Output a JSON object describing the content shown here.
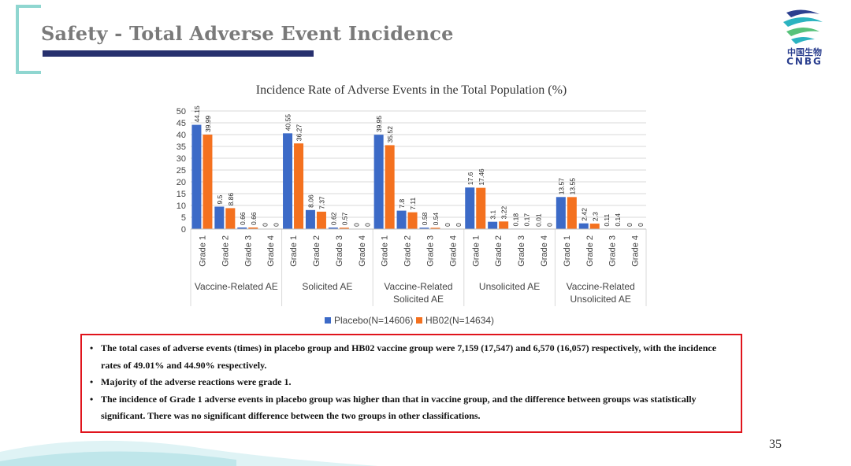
{
  "slide": {
    "title": "Safety - Total Adverse Event Incidence",
    "page_number": "35",
    "logo_cn": "中国生物",
    "logo_en": "CNBG"
  },
  "colors": {
    "placebo": "#3c6ac7",
    "hb02": "#f4711f",
    "title_bar": "#27306e",
    "bracket": "#8fd6d0",
    "box": "#e0141c"
  },
  "chart_data": {
    "type": "bar",
    "title": "Incidence Rate of Adverse Events in the Total Population (%)",
    "ylim": [
      0,
      50
    ],
    "yticks": [
      0,
      5,
      10,
      15,
      20,
      25,
      30,
      35,
      40,
      45,
      50
    ],
    "grid": true,
    "legend_position": "bottom",
    "groups": [
      {
        "label": [
          "Vaccine-Related AE"
        ],
        "categories": [
          "Grade 1",
          "Grade 2",
          "Grade 3",
          "Grade 4"
        ],
        "placebo": [
          44.15,
          9.5,
          0.66,
          0
        ],
        "hb02": [
          39.99,
          8.86,
          0.66,
          0
        ]
      },
      {
        "label": [
          "Solicited AE"
        ],
        "categories": [
          "Grade 1",
          "Grade 2",
          "Grade 3",
          "Grade 4"
        ],
        "placebo": [
          40.55,
          8.06,
          0.62,
          0
        ],
        "hb02": [
          36.27,
          7.37,
          0.57,
          0
        ]
      },
      {
        "label": [
          "Vaccine-Related",
          "Solicited AE"
        ],
        "categories": [
          "Grade 1",
          "Grade 2",
          "Grade 3",
          "Grade 4"
        ],
        "placebo": [
          39.95,
          7.8,
          0.58,
          0
        ],
        "hb02": [
          35.52,
          7.11,
          0.54,
          0
        ]
      },
      {
        "label": [
          "Unsolicited AE"
        ],
        "categories": [
          "Grade 1",
          "Grade 2",
          "Grade 3",
          "Grade 4"
        ],
        "placebo": [
          17.6,
          3.1,
          0.18,
          0.01
        ],
        "hb02": [
          17.46,
          3.22,
          0.17,
          0
        ]
      },
      {
        "label": [
          "Vaccine-Related",
          "Unsolicited AE"
        ],
        "categories": [
          "Grade 1",
          "Grade 2",
          "Grade 3",
          "Grade 4"
        ],
        "placebo": [
          13.57,
          2.42,
          0.11,
          0
        ],
        "hb02": [
          13.55,
          2.3,
          0.14,
          0
        ]
      }
    ],
    "series": [
      {
        "name": "Placebo(N=14606)",
        "key": "placebo"
      },
      {
        "name": "HB02(N=14634)",
        "key": "hb02"
      }
    ]
  },
  "notes": [
    "The total cases of adverse events (times) in placebo group and HB02 vaccine group were 7,159 (17,547) and 6,570 (16,057) respectively, with the incidence rates of 49.01% and 44.90% respectively.",
    "Majority of the adverse reactions were grade 1.",
    "The incidence of Grade 1 adverse events in placebo group was higher than that in vaccine group, and the difference between groups was statistically significant. There was no significant difference between the two groups in other classifications."
  ]
}
